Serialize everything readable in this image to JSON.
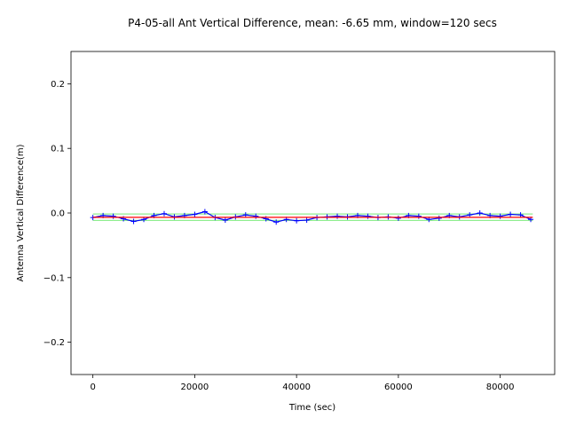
{
  "chart_data": {
    "type": "line",
    "title": "P4-05-all Ant Vertical Difference, mean: -6.65 mm, window=120 secs",
    "xlabel": "Time (sec)",
    "ylabel": "Antenna Vertical Difference(m)",
    "xlim": [
      -4300,
      90700
    ],
    "ylim": [
      -0.25,
      0.25
    ],
    "x_ticks": [
      0,
      20000,
      40000,
      60000,
      80000
    ],
    "x_tick_labels": [
      "0",
      "20000",
      "40000",
      "60000",
      "80000"
    ],
    "y_ticks": [
      -0.2,
      -0.1,
      0.0,
      0.1,
      0.2
    ],
    "y_tick_labels": [
      "−0.2",
      "−0.1",
      "0.0",
      "0.1",
      "0.2"
    ],
    "grid": false,
    "series": [
      {
        "style": "blue '+' markers with connecting line",
        "color": "#0000ff",
        "x": [
          0,
          2000,
          4000,
          6000,
          8000,
          10000,
          12000,
          14000,
          16000,
          18000,
          20000,
          22000,
          24000,
          26000,
          28000,
          30000,
          32000,
          34000,
          36000,
          38000,
          40000,
          42000,
          44000,
          46000,
          48000,
          50000,
          52000,
          54000,
          56000,
          58000,
          60000,
          62000,
          64000,
          66000,
          68000,
          70000,
          72000,
          74000,
          76000,
          78000,
          80000,
          82000,
          84000,
          86000
        ],
        "y": [
          -0.007,
          -0.004,
          -0.005,
          -0.009,
          -0.013,
          -0.01,
          -0.004,
          -0.001,
          -0.006,
          -0.004,
          -0.002,
          0.002,
          -0.007,
          -0.011,
          -0.006,
          -0.003,
          -0.005,
          -0.009,
          -0.014,
          -0.01,
          -0.012,
          -0.011,
          -0.007,
          -0.006,
          -0.005,
          -0.006,
          -0.004,
          -0.005,
          -0.007,
          -0.006,
          -0.008,
          -0.004,
          -0.005,
          -0.01,
          -0.008,
          -0.004,
          -0.006,
          -0.003,
          0.0,
          -0.004,
          -0.005,
          -0.002,
          -0.003,
          -0.01
        ]
      },
      {
        "style": "red line",
        "color": "#ff0000",
        "x": [
          0,
          86400
        ],
        "y": [
          -0.00665,
          -0.00665
        ]
      },
      {
        "style": "green lines",
        "color": "#90ee90",
        "x": [
          0,
          86400
        ],
        "y_upper": [
          -0.0015,
          -0.0015
        ],
        "y_lower": [
          -0.0115,
          -0.0115
        ]
      }
    ]
  }
}
